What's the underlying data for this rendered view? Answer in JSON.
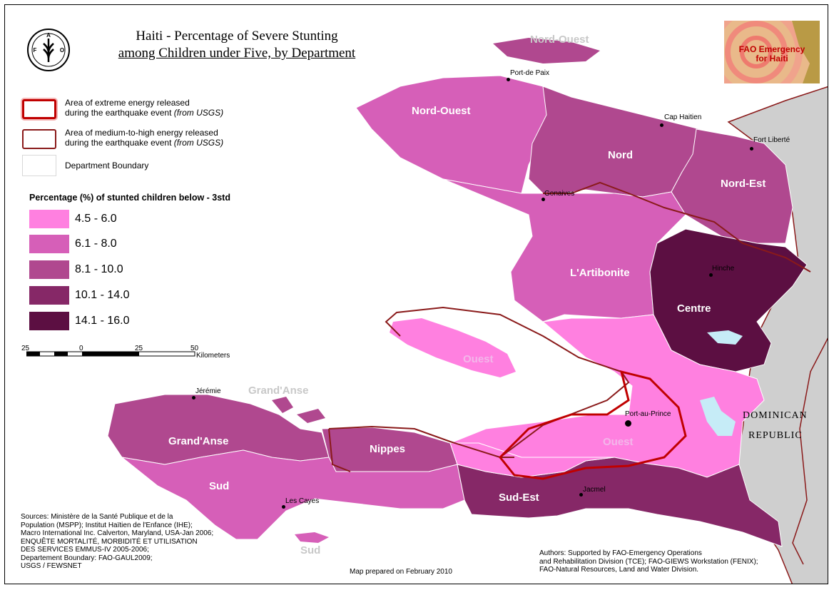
{
  "title": {
    "line1": "Haiti - Percentage of Severe Stunting",
    "line2": "among Children under Five, by Department"
  },
  "logo": {
    "text": "FAO",
    "motto": "FIAT PANIS"
  },
  "badge": {
    "line1": "FAO Emergency",
    "line2": "for Haiti"
  },
  "legend": {
    "items": [
      {
        "line1": "Area of extreme energy released",
        "line2": "during the earthquake event ",
        "italic": "(from USGS)"
      },
      {
        "line1": "Area of medium-to-high energy released",
        "line2": "during the earthquake event ",
        "italic": "(from USGS)"
      },
      {
        "line1": "Department Boundary",
        "line2": "",
        "italic": ""
      }
    ],
    "class_title": "Percentage (%) of stunted children below - 3std",
    "classes": [
      {
        "label": "4.5 - 6.0",
        "color": "#ff80e0"
      },
      {
        "label": "6.1 - 8.0",
        "color": "#d65fb8"
      },
      {
        "label": "8.1 - 10.0",
        "color": "#b0488f"
      },
      {
        "label": "10.1 - 14.0",
        "color": "#862867"
      },
      {
        "label": "14.1 - 16.0",
        "color": "#5c0f42"
      }
    ]
  },
  "scale": {
    "ticks": [
      "25",
      "0",
      "25",
      "50"
    ],
    "unit": "Kilometers"
  },
  "departments": {
    "nord_ouest": "Nord-Ouest",
    "nord_ouest_island": "Nord-Ouest",
    "nord": "Nord",
    "nord_est": "Nord-Est",
    "artibonite": "L'Artibonite",
    "centre": "Centre",
    "ouest_island": "Ouest",
    "ouest": "Ouest",
    "grand_anse_island": "Grand'Anse",
    "grand_anse": "Grand'Anse",
    "nippes": "Nippes",
    "sud": "Sud",
    "sud_island": "Sud",
    "sud_est": "Sud-Est"
  },
  "cities": {
    "port_de_paix": "Port-de Paix",
    "cap_haitien": "Cap Haitien",
    "fort_liberte": "Fort Liberté",
    "gonaives": "Gonaives",
    "hinche": "Hinche",
    "jeremie": "Jérémie",
    "port_au_prince": "Port-au-Prince",
    "jacmel": "Jacmel",
    "les_cayes": "Les Cayes"
  },
  "country": {
    "line1": "DOMINICAN",
    "line2": "REPUBLIC"
  },
  "sources": [
    "Sources: Ministère de la Santé Publique et de la",
    "Population (MSPP); Institut Haïtien de l'Enfance (IHE);",
    "Macro International Inc. Calverton, Maryland, USA-Jan 2006;",
    "ENQUÊTE MORTALITÉ, MORBIDITÉ ET UTILISATION",
    "DES SERVICES EMMUS-IV 2005-2006;",
    "Departement Boundary: FAO-GAUL2009;",
    "USGS / FEWSNET"
  ],
  "prepared": "Map prepared on February 2010",
  "authors": [
    "Authors: Supported by FAO-Emergency Operations",
    "and Rehabilitation Division (TCE); FAO-GIEWS Workstation (FENIX);",
    "FAO-Natural Resources, Land and Water Division."
  ]
}
